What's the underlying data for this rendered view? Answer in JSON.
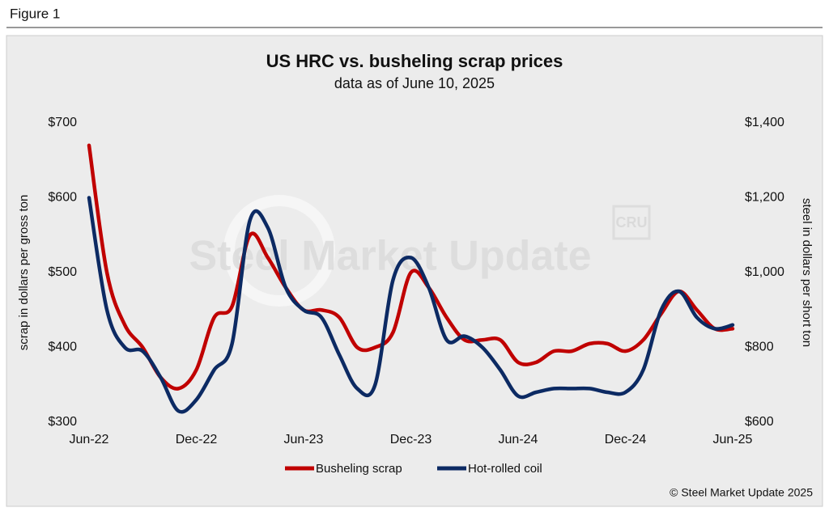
{
  "header": {
    "figure_label": "Figure 1"
  },
  "chart_data": {
    "type": "line",
    "title": "US HRC vs. busheling scrap prices",
    "subtitle": "data as of June 10, 2025",
    "watermark": "Steel Market Update",
    "watermark_logo": "CRU",
    "ylabel": "scrap in dollars per gross ton",
    "y2label": "steel in dollars per short ton",
    "source": "© Steel Market Update 2025",
    "legend": "bottom",
    "grid": false,
    "categories": [
      "Jun-22",
      null,
      null,
      null,
      null,
      null,
      "Dec-22",
      null,
      null,
      null,
      null,
      null,
      "Jun-23",
      null,
      null,
      null,
      null,
      null,
      "Dec-23",
      null,
      null,
      null,
      null,
      null,
      "Jun-24",
      null,
      null,
      null,
      null,
      null,
      "Dec-24",
      null,
      null,
      null,
      null,
      null,
      "Jun-25"
    ],
    "ylim": [
      300,
      700
    ],
    "yticks": [
      {
        "value": 300,
        "label": "$300"
      },
      {
        "value": 400,
        "label": "$400"
      },
      {
        "value": 500,
        "label": "$500"
      },
      {
        "value": 600,
        "label": "$600"
      },
      {
        "value": 700,
        "label": "$700"
      }
    ],
    "y2lim": [
      600,
      1400
    ],
    "y2ticks": [
      {
        "value": 600,
        "label": "$600"
      },
      {
        "value": 800,
        "label": "$800"
      },
      {
        "value": 1000,
        "label": "$1,000"
      },
      {
        "value": 1200,
        "label": "$1,200"
      },
      {
        "value": 1400,
        "label": "$1,400"
      }
    ],
    "series": [
      {
        "name": "Busheling scrap",
        "color": "#c00000",
        "values": [
          670,
          500,
          430,
          400,
          360,
          345,
          370,
          440,
          455,
          550,
          520,
          480,
          450,
          450,
          440,
          400,
          400,
          420,
          500,
          480,
          440,
          410,
          410,
          410,
          380,
          380,
          395,
          395,
          405,
          405,
          395,
          410,
          445,
          475,
          450,
          425,
          425
        ]
      },
      {
        "name": "Hot-rolled coil",
        "color": "#0c2a63",
        "axis": "y2",
        "values": [
          1200,
          900,
          800,
          790,
          720,
          630,
          660,
          740,
          810,
          1140,
          1120,
          960,
          900,
          880,
          780,
          690,
          700,
          980,
          1040,
          960,
          820,
          830,
          800,
          740,
          670,
          680,
          690,
          690,
          690,
          680,
          680,
          740,
          900,
          950,
          880,
          850,
          860
        ]
      }
    ]
  }
}
